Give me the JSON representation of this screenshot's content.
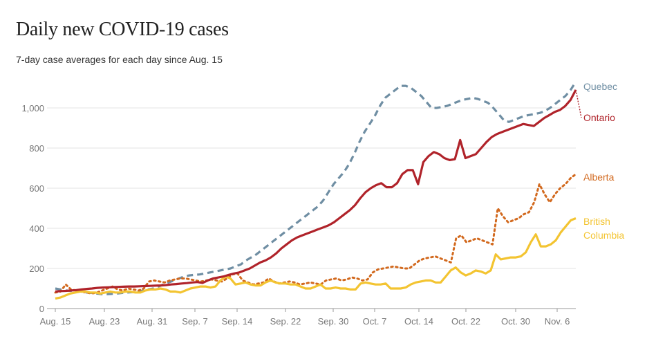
{
  "chart_data": {
    "type": "line",
    "title": "Daily new COVID-19 cases",
    "subtitle": "7-day case averages for each day since Aug. 15",
    "xlabel": "",
    "ylabel": "",
    "ylim": [
      0,
      1150
    ],
    "yticks": [
      0,
      200,
      400,
      600,
      800,
      1000
    ],
    "ytick_labels": [
      "0",
      "200",
      "400",
      "600",
      "800",
      "1,000"
    ],
    "xtick_labels": [
      "Aug. 15",
      "Aug. 23",
      "Aug. 31",
      "Sep. 7",
      "Sep. 14",
      "Sep. 22",
      "Sep. 30",
      "Oct. 7",
      "Oct. 14",
      "Oct. 22",
      "Oct. 30",
      "Nov. 6"
    ],
    "grid": true,
    "legend": "right, labels at line ends",
    "series": [
      {
        "name": "Quebec",
        "color": "#6f8ea3",
        "dash": "dashed",
        "label_lines": [
          "Quebec"
        ],
        "values": [
          100,
          95,
          90,
          88,
          90,
          85,
          80,
          78,
          75,
          72,
          72,
          73,
          75,
          78,
          80,
          82,
          85,
          90,
          95,
          100,
          110,
          120,
          130,
          140,
          150,
          160,
          165,
          168,
          170,
          175,
          180,
          185,
          190,
          195,
          200,
          210,
          220,
          240,
          255,
          270,
          290,
          310,
          330,
          350,
          370,
          390,
          410,
          430,
          450,
          470,
          490,
          510,
          540,
          580,
          620,
          650,
          680,
          720,
          770,
          830,
          880,
          920,
          960,
          1010,
          1050,
          1070,
          1090,
          1110,
          1110,
          1100,
          1080,
          1060,
          1030,
          1000,
          1000,
          1005,
          1010,
          1020,
          1030,
          1040,
          1045,
          1050,
          1045,
          1035,
          1025,
          1000,
          970,
          940,
          930,
          940,
          950,
          960,
          965,
          970,
          975,
          985,
          1000,
          1020,
          1040,
          1060,
          1090,
          1130
        ]
      },
      {
        "name": "Ontario",
        "color": "#b0232a",
        "dash": "solid",
        "label_lines": [
          "Ontario"
        ],
        "values": [
          85,
          87,
          88,
          90,
          92,
          95,
          98,
          100,
          103,
          105,
          106,
          107,
          108,
          109,
          110,
          110,
          111,
          112,
          113,
          114,
          115,
          117,
          120,
          122,
          125,
          127,
          130,
          132,
          128,
          140,
          150,
          155,
          160,
          168,
          175,
          180,
          190,
          200,
          215,
          230,
          240,
          255,
          275,
          300,
          320,
          340,
          355,
          365,
          375,
          385,
          395,
          405,
          415,
          430,
          450,
          470,
          490,
          515,
          550,
          580,
          600,
          615,
          625,
          605,
          605,
          625,
          670,
          690,
          690,
          620,
          730,
          760,
          780,
          770,
          750,
          740,
          745,
          840,
          750,
          760,
          770,
          800,
          830,
          855,
          870,
          880,
          890,
          900,
          910,
          920,
          915,
          910,
          930,
          950,
          965,
          980,
          990,
          1010,
          1040,
          1090
        ]
      },
      {
        "name": "Alberta",
        "color": "#d2691e",
        "dash": "dotted",
        "label_lines": [
          "Alberta"
        ],
        "values": [
          80,
          85,
          120,
          95,
          90,
          85,
          80,
          75,
          80,
          90,
          100,
          110,
          95,
          90,
          100,
          95,
          90,
          100,
          135,
          140,
          135,
          130,
          140,
          145,
          150,
          150,
          145,
          140,
          135,
          140,
          145,
          140,
          135,
          150,
          170,
          175,
          140,
          130,
          120,
          125,
          130,
          150,
          135,
          125,
          130,
          135,
          130,
          120,
          125,
          130,
          125,
          120,
          140,
          145,
          150,
          140,
          145,
          155,
          150,
          140,
          145,
          180,
          195,
          200,
          205,
          210,
          205,
          200,
          200,
          220,
          240,
          250,
          255,
          260,
          250,
          240,
          230,
          350,
          365,
          330,
          340,
          350,
          340,
          330,
          320,
          500,
          460,
          430,
          440,
          450,
          470,
          480,
          530,
          620,
          570,
          530,
          570,
          600,
          620,
          650,
          670
        ]
      },
      {
        "name": "British Columbia",
        "color": "#f3c431",
        "dash": "solid",
        "label_lines": [
          "British",
          "Columbia"
        ],
        "values": [
          50,
          55,
          65,
          75,
          80,
          85,
          85,
          80,
          80,
          75,
          80,
          85,
          80,
          80,
          85,
          85,
          80,
          80,
          90,
          95,
          95,
          100,
          95,
          85,
          85,
          80,
          90,
          100,
          105,
          110,
          110,
          105,
          110,
          140,
          160,
          150,
          120,
          125,
          130,
          120,
          115,
          115,
          130,
          140,
          130,
          125,
          125,
          120,
          120,
          110,
          100,
          100,
          110,
          120,
          100,
          100,
          105,
          100,
          100,
          95,
          95,
          125,
          130,
          125,
          120,
          120,
          125,
          100,
          100,
          100,
          105,
          120,
          130,
          135,
          140,
          140,
          130,
          130,
          160,
          190,
          205,
          180,
          165,
          175,
          190,
          185,
          175,
          190,
          270,
          245,
          250,
          255,
          255,
          260,
          280,
          330,
          370,
          310,
          310,
          320,
          340,
          380,
          410,
          440,
          450
        ]
      }
    ]
  }
}
